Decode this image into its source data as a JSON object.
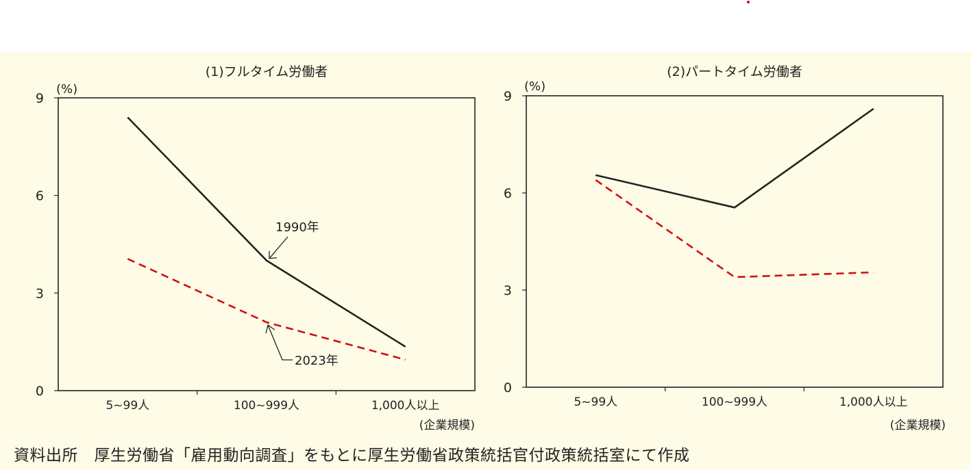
{
  "chart_data": [
    {
      "type": "line",
      "title": "(1)フルタイム労働者",
      "ylabel": "(%)",
      "xlabel": "(企業規模)",
      "categories": [
        "5~99人",
        "100~999人",
        "1,000人以上"
      ],
      "ylim": [
        0,
        9
      ],
      "yticks": [
        0,
        3,
        6,
        9
      ],
      "grid": false,
      "series": [
        {
          "name": "1990年",
          "values": [
            8.4,
            4.0,
            1.35
          ],
          "color": "#222222",
          "style": "solid"
        },
        {
          "name": "2023年",
          "values": [
            4.05,
            2.1,
            0.95
          ],
          "color": "#cc1111",
          "style": "dashed"
        }
      ],
      "annotations": [
        "1990年",
        "2023年"
      ]
    },
    {
      "type": "line",
      "title": "(2)パートタイム労働者",
      "ylabel": "(%)",
      "xlabel": "(企業規模)",
      "categories": [
        "5~99人",
        "100~999人",
        "1,000人以上"
      ],
      "ylim": [
        0,
        9
      ],
      "yticks": [
        0,
        3,
        6,
        9
      ],
      "grid": false,
      "series": [
        {
          "values": [
            6.55,
            5.55,
            8.6
          ],
          "color": "#222222",
          "style": "solid"
        },
        {
          "values": [
            6.4,
            3.4,
            3.55
          ],
          "color": "#cc1111",
          "style": "dashed"
        }
      ]
    }
  ],
  "source": "資料出所　厚生労働省「雇用動向調査」をもとに厚生労働省政策統括官付政策統括室にて作成"
}
